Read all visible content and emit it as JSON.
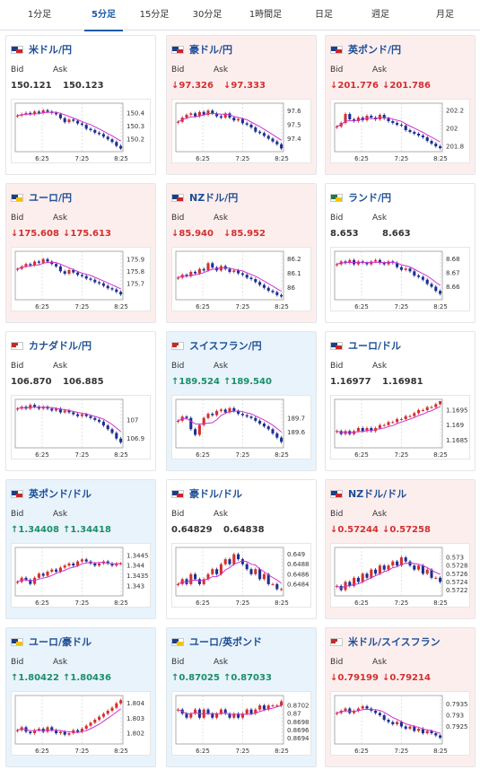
{
  "tabs": [
    {
      "label": "1分足",
      "active": false
    },
    {
      "label": "5分足",
      "active": true
    },
    {
      "label": "15分足",
      "active": false
    },
    {
      "label": "30分足",
      "active": false
    },
    {
      "label": "1時間足",
      "active": false
    },
    {
      "label": "日足",
      "active": false
    },
    {
      "label": "週足",
      "active": false
    },
    {
      "label": "月足",
      "active": false
    }
  ],
  "labels": {
    "bid": "Bid",
    "ask": "Ask"
  },
  "colors": {
    "up_bg": "#e9f3fb",
    "down_bg": "#fdeeee",
    "candle_up": "#d2302f",
    "candle_down": "#1b2f8f",
    "ma": "#cc33cc"
  },
  "cards": [
    {
      "pair": "米ドル/円",
      "flag": "us",
      "trend": "flat",
      "bid": "150.121",
      "ask": "150.123",
      "xticks": [
        "6:25",
        "7:25",
        "8:25"
      ],
      "yticks": [
        "150.4",
        "150.3",
        "150.2"
      ],
      "ylim": [
        150.12,
        150.46
      ],
      "closes": [
        150.38,
        150.39,
        150.4,
        150.39,
        150.41,
        150.4,
        150.42,
        150.41,
        150.4,
        150.39,
        150.36,
        150.33,
        150.35,
        150.34,
        150.32,
        150.31,
        150.28,
        150.27,
        150.25,
        150.24,
        150.22,
        150.2,
        150.18,
        150.15,
        150.13
      ]
    },
    {
      "pair": "豪ドル/円",
      "flag": "au",
      "trend": "down",
      "bid": "↓97.326",
      "ask": "↓97.333",
      "xticks": [
        "6:25",
        "7:25",
        "8:25"
      ],
      "yticks": [
        "97.6",
        "97.5",
        "97.4"
      ],
      "ylim": [
        97.32,
        97.64
      ],
      "closes": [
        97.52,
        97.55,
        97.57,
        97.58,
        97.56,
        97.59,
        97.57,
        97.6,
        97.58,
        97.56,
        97.55,
        97.58,
        97.55,
        97.53,
        97.54,
        97.51,
        97.5,
        97.48,
        97.45,
        97.44,
        97.42,
        97.4,
        97.38,
        97.36,
        97.33
      ]
    },
    {
      "pair": "英ポンド/円",
      "flag": "gb",
      "trend": "down",
      "bid": "↓201.776",
      "ask": "↓201.786",
      "xticks": [
        "6:25",
        "7:25",
        "8:25"
      ],
      "yticks": [
        "202.2",
        "202",
        "201.8"
      ],
      "ylim": [
        201.76,
        202.26
      ],
      "closes": [
        202.02,
        202.06,
        202.16,
        202.1,
        202.08,
        202.12,
        202.09,
        202.14,
        202.12,
        202.1,
        202.15,
        202.11,
        202.08,
        202.06,
        202.04,
        202.03,
        201.98,
        201.96,
        201.94,
        201.92,
        201.9,
        201.86,
        201.83,
        201.8,
        201.78
      ]
    },
    {
      "pair": "ユーロ/円",
      "flag": "eu",
      "trend": "down",
      "bid": "↓175.608",
      "ask": "↓175.613",
      "xticks": [
        "6:25",
        "7:25",
        "8:25"
      ],
      "yticks": [
        "175.9",
        "175.8",
        "175.7"
      ],
      "ylim": [
        175.58,
        175.95
      ],
      "closes": [
        175.82,
        175.84,
        175.86,
        175.85,
        175.88,
        175.87,
        175.9,
        175.88,
        175.86,
        175.84,
        175.8,
        175.78,
        175.81,
        175.79,
        175.77,
        175.76,
        175.74,
        175.73,
        175.71,
        175.7,
        175.68,
        175.66,
        175.65,
        175.63,
        175.61
      ]
    },
    {
      "pair": "NZドル/円",
      "flag": "nz",
      "trend": "down",
      "bid": "↓85.940",
      "ask": "↓85.952",
      "xticks": [
        "6:25",
        "7:25",
        "8:25"
      ],
      "yticks": [
        "86.2",
        "86.1",
        "86"
      ],
      "ylim": [
        85.93,
        86.24
      ],
      "closes": [
        86.07,
        86.09,
        86.08,
        86.11,
        86.1,
        86.13,
        86.12,
        86.17,
        86.14,
        86.12,
        86.15,
        86.13,
        86.11,
        86.12,
        86.1,
        86.09,
        86.07,
        86.06,
        86.04,
        86.02,
        86.0,
        85.98,
        85.97,
        85.95,
        85.94
      ]
    },
    {
      "pair": "ランド/円",
      "flag": "za",
      "trend": "flat",
      "bid": "8.653",
      "ask": "8.663",
      "xticks": [
        "6:25",
        "7:25",
        "8:25"
      ],
      "yticks": [
        "8.68",
        "8.67",
        "8.66"
      ],
      "ylim": [
        8.652,
        8.684
      ],
      "closes": [
        8.676,
        8.678,
        8.677,
        8.679,
        8.676,
        8.678,
        8.677,
        8.676,
        8.678,
        8.679,
        8.677,
        8.676,
        8.678,
        8.677,
        8.674,
        8.672,
        8.673,
        8.671,
        8.668,
        8.667,
        8.665,
        8.662,
        8.66,
        8.657,
        8.655
      ]
    },
    {
      "pair": "カナダドル/円",
      "flag": "ca",
      "trend": "flat",
      "bid": "106.870",
      "ask": "106.885",
      "xticks": [
        "6:25",
        "7:25",
        "8:25"
      ],
      "yticks": [
        "107",
        "106.9"
      ],
      "ylim": [
        106.86,
        107.1
      ],
      "closes": [
        107.06,
        107.07,
        107.06,
        107.08,
        107.07,
        107.06,
        107.07,
        107.06,
        107.05,
        107.06,
        107.04,
        107.05,
        107.04,
        107.03,
        107.02,
        107.03,
        107.02,
        107.01,
        107.0,
        106.99,
        106.97,
        106.95,
        106.93,
        106.9,
        106.88
      ]
    },
    {
      "pair": "スイスフラン/円",
      "flag": "ch",
      "trend": "up",
      "bid": "↑189.524",
      "ask": "↑189.540",
      "xticks": [
        "6:25",
        "7:25",
        "8:25"
      ],
      "yticks": [
        "189.7",
        "189.6"
      ],
      "ylim": [
        189.5,
        189.82
      ],
      "closes": [
        189.68,
        189.71,
        189.7,
        189.62,
        189.58,
        189.65,
        189.7,
        189.73,
        189.72,
        189.75,
        189.76,
        189.74,
        189.77,
        189.75,
        189.73,
        189.72,
        189.71,
        189.7,
        189.68,
        189.66,
        189.64,
        189.62,
        189.59,
        189.56,
        189.53
      ]
    },
    {
      "pair": "ユーロ/ドル",
      "flag": "us",
      "trend": "flat",
      "bid": "1.16977",
      "ask": "1.16981",
      "xticks": [
        "6:25",
        "7:25",
        "8:25"
      ],
      "yticks": [
        "1.1695",
        "1.169",
        "1.1685"
      ],
      "ylim": [
        1.1683,
        1.1698
      ],
      "closes": [
        1.1688,
        1.1687,
        1.1688,
        1.1687,
        1.1688,
        1.1689,
        1.1688,
        1.1689,
        1.1688,
        1.1689,
        1.169,
        1.169,
        1.1691,
        1.1691,
        1.1692,
        1.1692,
        1.1693,
        1.1693,
        1.1694,
        1.1695,
        1.1695,
        1.1696,
        1.1696,
        1.1697,
        1.1698
      ]
    },
    {
      "pair": "英ポンド/ドル",
      "flag": "us",
      "trend": "up",
      "bid": "↑1.34408",
      "ask": "↑1.34418",
      "xticks": [
        "6:25",
        "7:25",
        "8:25"
      ],
      "yticks": [
        "1.3445",
        "1.344",
        "1.3435",
        "1.343"
      ],
      "ylim": [
        1.3426,
        1.3448
      ],
      "closes": [
        1.3432,
        1.3434,
        1.3433,
        1.3431,
        1.3434,
        1.3436,
        1.3435,
        1.3437,
        1.3438,
        1.3437,
        1.3439,
        1.344,
        1.3441,
        1.344,
        1.3442,
        1.3443,
        1.3442,
        1.3441,
        1.344,
        1.3441,
        1.3442,
        1.3441,
        1.344,
        1.3441,
        1.3441
      ]
    },
    {
      "pair": "豪ドル/ドル",
      "flag": "au",
      "trend": "flat",
      "bid": "0.64829",
      "ask": "0.64838",
      "xticks": [
        "6:25",
        "7:25",
        "8:25"
      ],
      "yticks": [
        "0.649",
        "0.6488",
        "0.6486",
        "0.6484"
      ],
      "ylim": [
        0.6482,
        0.6491
      ],
      "closes": [
        0.6484,
        0.6485,
        0.6484,
        0.6486,
        0.6485,
        0.6484,
        0.6485,
        0.6486,
        0.6487,
        0.6486,
        0.6488,
        0.6489,
        0.6488,
        0.649,
        0.6489,
        0.6488,
        0.6487,
        0.6486,
        0.6487,
        0.6485,
        0.6486,
        0.6484,
        0.6484,
        0.6483,
        0.6483
      ]
    },
    {
      "pair": "NZドル/ドル",
      "flag": "us",
      "trend": "down",
      "bid": "↓0.57244",
      "ask": "↓0.57258",
      "xticks": [
        "6:25",
        "7:25",
        "8:25"
      ],
      "yticks": [
        "0.573",
        "0.5728",
        "0.5726",
        "0.5724",
        "0.5722"
      ],
      "ylim": [
        0.5721,
        0.5732
      ],
      "closes": [
        0.5723,
        0.5722,
        0.5724,
        0.5723,
        0.5725,
        0.5724,
        0.5726,
        0.5725,
        0.5727,
        0.5726,
        0.5728,
        0.5727,
        0.5728,
        0.5729,
        0.5728,
        0.573,
        0.5729,
        0.5728,
        0.5727,
        0.5728,
        0.5726,
        0.5727,
        0.5725,
        0.5725,
        0.5724
      ]
    },
    {
      "pair": "ユーロ/豪ドル",
      "flag": "eu",
      "trend": "up",
      "bid": "↑1.80422",
      "ask": "↑1.80436",
      "xticks": [
        "6:25",
        "7:25",
        "8:25"
      ],
      "yticks": [
        "1.804",
        "1.803",
        "1.802"
      ],
      "ylim": [
        1.8014,
        1.8044
      ],
      "closes": [
        1.8022,
        1.8024,
        1.8021,
        1.802,
        1.8022,
        1.8023,
        1.8021,
        1.8024,
        1.8022,
        1.802,
        1.8021,
        1.8019,
        1.802,
        1.8022,
        1.8021,
        1.8023,
        1.8025,
        1.8027,
        1.8029,
        1.8031,
        1.8033,
        1.8035,
        1.8037,
        1.804,
        1.8042
      ]
    },
    {
      "pair": "ユーロ/英ポンド",
      "flag": "eu",
      "trend": "up",
      "bid": "↑0.87025",
      "ask": "↑0.87033",
      "xticks": [
        "6:25",
        "7:25",
        "8:25"
      ],
      "yticks": [
        "0.8702",
        "0.87",
        "0.8698",
        "0.8696",
        "0.8694"
      ],
      "ylim": [
        0.8693,
        0.8704
      ],
      "closes": [
        0.8701,
        0.87,
        0.8699,
        0.87,
        0.8701,
        0.8699,
        0.8701,
        0.87,
        0.8699,
        0.87,
        0.8701,
        0.87,
        0.8699,
        0.87,
        0.8699,
        0.87,
        0.8701,
        0.87,
        0.8701,
        0.8702,
        0.8701,
        0.8702,
        0.8702,
        0.8702,
        0.8703
      ]
    },
    {
      "pair": "米ドル/スイスフラン",
      "flag": "ch",
      "trend": "down",
      "bid": "↓0.79199",
      "ask": "↓0.79214",
      "xticks": [
        "6:25",
        "7:25",
        "8:25"
      ],
      "yticks": [
        "0.7935",
        "0.793",
        "0.7925"
      ],
      "ylim": [
        0.7918,
        0.7938
      ],
      "closes": [
        0.7931,
        0.7932,
        0.7933,
        0.7931,
        0.7932,
        0.7933,
        0.7934,
        0.7933,
        0.7932,
        0.7931,
        0.793,
        0.7928,
        0.7927,
        0.7926,
        0.7927,
        0.7925,
        0.7924,
        0.7925,
        0.7923,
        0.7924,
        0.7922,
        0.7923,
        0.7922,
        0.7921,
        0.792
      ]
    }
  ]
}
